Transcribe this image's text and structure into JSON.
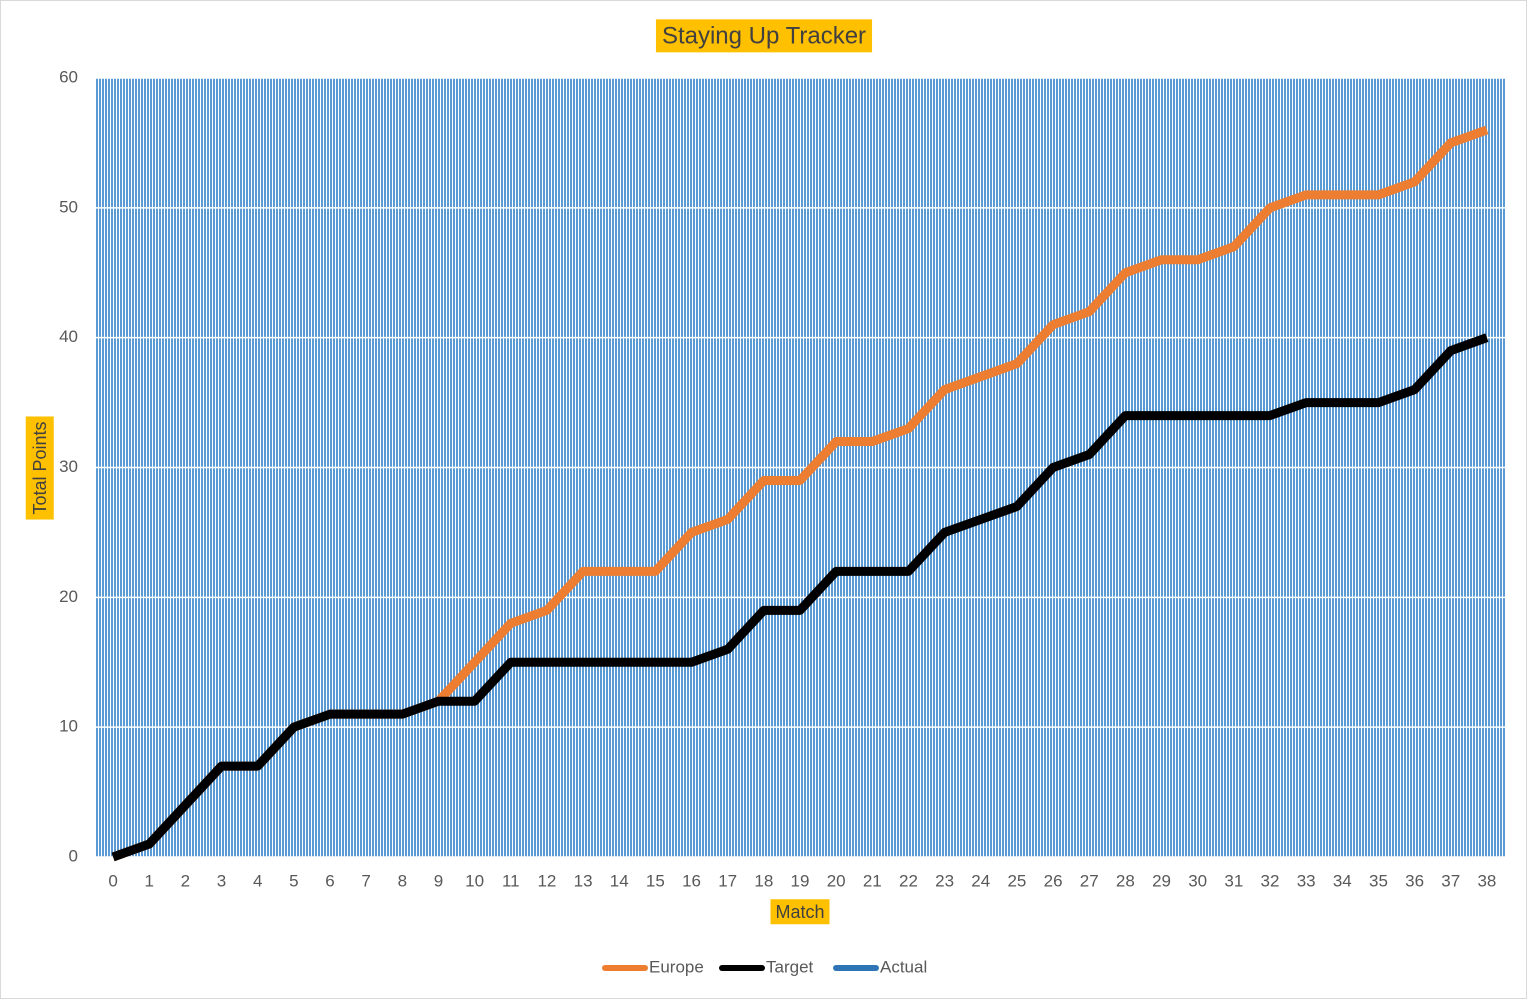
{
  "chart_data": {
    "type": "line",
    "title": "Staying Up Tracker",
    "x_label": "Match",
    "y_label": "Total Points",
    "categories": [
      0,
      1,
      2,
      3,
      4,
      5,
      6,
      7,
      8,
      9,
      10,
      11,
      12,
      13,
      14,
      15,
      16,
      17,
      18,
      19,
      20,
      21,
      22,
      23,
      24,
      25,
      26,
      27,
      28,
      29,
      30,
      31,
      32,
      33,
      34,
      35,
      36,
      37,
      38
    ],
    "series": [
      {
        "name": "Europe",
        "color": "#ED7D31",
        "values": [
          0,
          1,
          4,
          7,
          7,
          10,
          11,
          11,
          11,
          12,
          15,
          18,
          19,
          22,
          22,
          22,
          25,
          26,
          29,
          29,
          32,
          32,
          33,
          36,
          37,
          38,
          41,
          42,
          45,
          46,
          46,
          47,
          50,
          51,
          51,
          51,
          52,
          55,
          56
        ]
      },
      {
        "name": "Target",
        "color": "#000000",
        "values": [
          0,
          1,
          4,
          7,
          7,
          10,
          11,
          11,
          11,
          12,
          12,
          15,
          15,
          15,
          15,
          15,
          15,
          16,
          19,
          19,
          22,
          22,
          22,
          25,
          26,
          27,
          30,
          31,
          34,
          34,
          34,
          34,
          34,
          35,
          35,
          35,
          36,
          39,
          40
        ]
      },
      {
        "name": "Actual",
        "color": "#2E75B6",
        "values": [
          null,
          null,
          null,
          null,
          null,
          null,
          null,
          null,
          null,
          null,
          null,
          null,
          null,
          null,
          null,
          null,
          null,
          null,
          null,
          null,
          null,
          null,
          null,
          null,
          null,
          null,
          null,
          null,
          null,
          null,
          null,
          null,
          null,
          null,
          null,
          null,
          null,
          null,
          null
        ]
      }
    ],
    "ylim": [
      0,
      60
    ],
    "yticks": [
      0,
      10,
      20,
      30,
      40,
      50,
      60
    ],
    "grid": true,
    "legend": "bottom"
  }
}
